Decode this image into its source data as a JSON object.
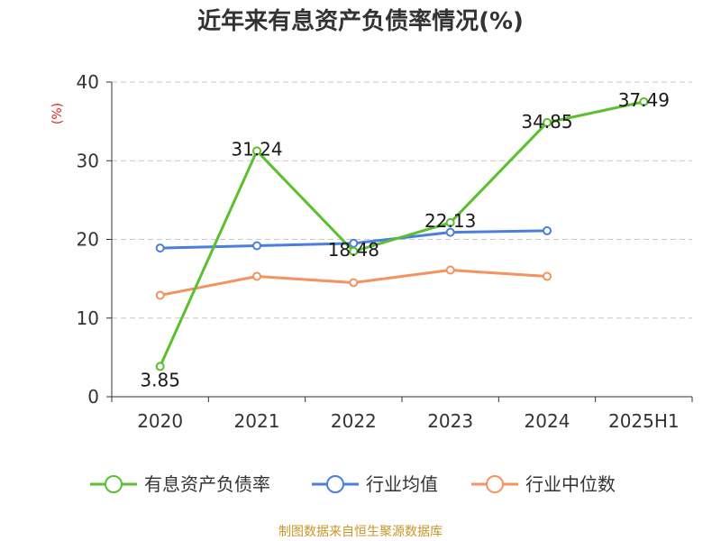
{
  "chart_data": {
    "type": "line",
    "title": "近年来有息资产负债率情况(%)",
    "ylabel": "(%)",
    "xlabel": "",
    "categories": [
      "2020",
      "2021",
      "2022",
      "2023",
      "2024",
      "2025H1"
    ],
    "ylim": [
      0,
      40
    ],
    "yticks": [
      0,
      10,
      20,
      30,
      40
    ],
    "grid": true,
    "legend_position": "bottom",
    "series": [
      {
        "name": "有息资产负债率",
        "color": "#5bbf2e",
        "values": [
          3.85,
          31.24,
          18.48,
          22.13,
          34.85,
          37.49
        ],
        "labels": [
          "3.85",
          "31.24",
          "18.48",
          "22.13",
          "34.85",
          "37.49"
        ]
      },
      {
        "name": "行业均值",
        "color": "#4a7fdc",
        "values": [
          18.9,
          19.2,
          19.5,
          20.9,
          21.1,
          null
        ]
      },
      {
        "name": "行业中位数",
        "color": "#f29360",
        "values": [
          12.9,
          15.3,
          14.5,
          16.1,
          15.3,
          null
        ]
      }
    ]
  },
  "footer": {
    "source": "制图数据来自恒生聚源数据库"
  }
}
